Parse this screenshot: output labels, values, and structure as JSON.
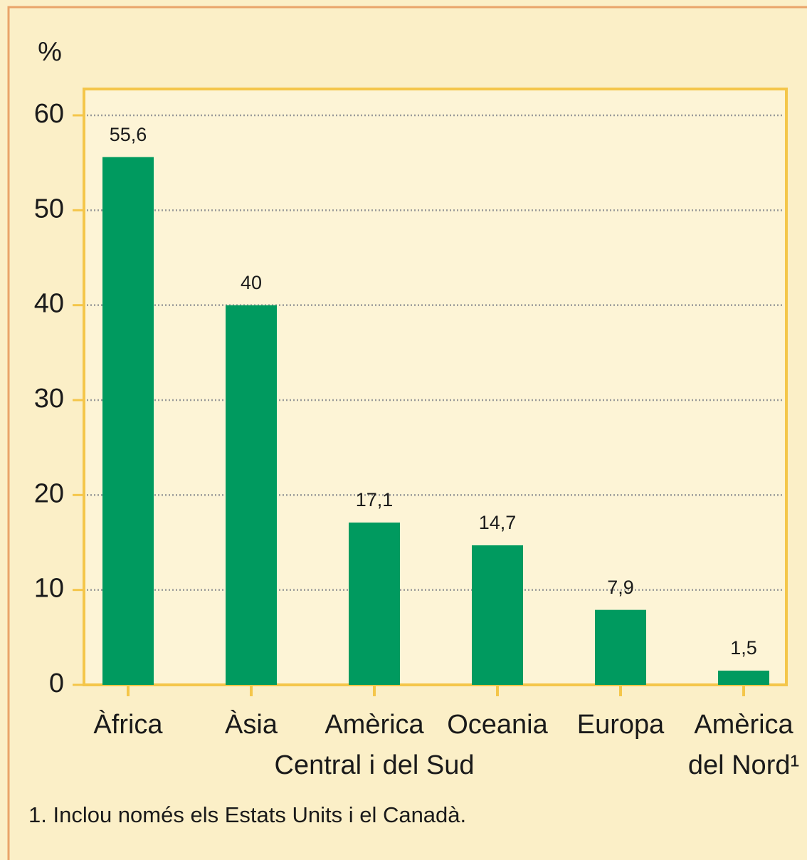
{
  "chart_data": {
    "type": "bar",
    "y_label": "%",
    "categories": [
      [
        "Àfrica"
      ],
      [
        "Àsia"
      ],
      [
        "Amèrica",
        "Central i del Sud"
      ],
      [
        "Oceania"
      ],
      [
        "Europa"
      ],
      [
        "Amèrica",
        "del Nord¹"
      ]
    ],
    "values": [
      55.6,
      40,
      17.1,
      14.7,
      7.9,
      1.5
    ],
    "value_labels": [
      "55,6",
      "40",
      "17,1",
      "14,7",
      "7,9",
      "1,5"
    ],
    "color": "#009a5f",
    "ylim": [
      0,
      60
    ],
    "yticks": [
      0,
      10,
      20,
      30,
      40,
      50,
      60
    ],
    "grid": true,
    "footnote": "1. Inclou només els Estats Units i el Canadà."
  }
}
